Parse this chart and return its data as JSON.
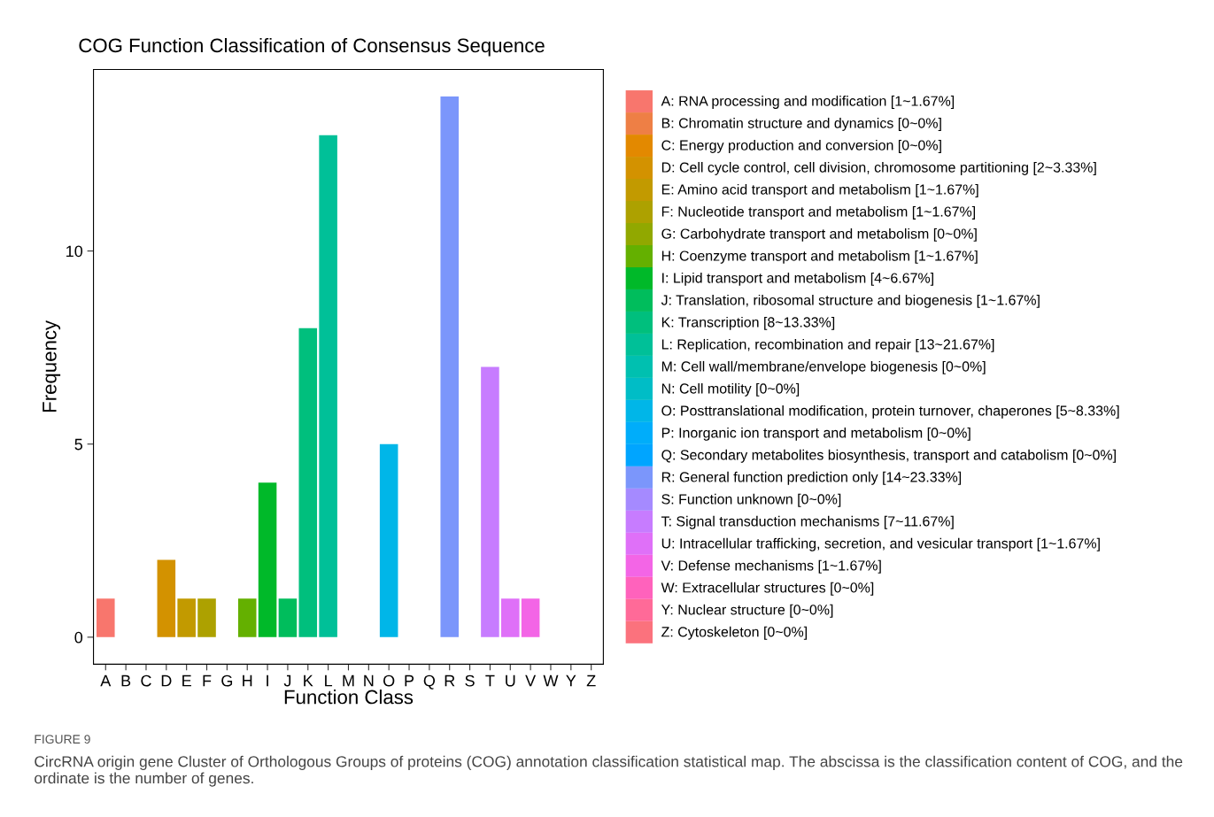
{
  "chart_data": {
    "type": "bar",
    "title": "COG Function Classification of Consensus Sequence",
    "xlabel": "Function Class",
    "ylabel": "Frequency",
    "categories": [
      "A",
      "B",
      "C",
      "D",
      "E",
      "F",
      "G",
      "H",
      "I",
      "J",
      "K",
      "L",
      "M",
      "N",
      "O",
      "P",
      "Q",
      "R",
      "S",
      "T",
      "U",
      "V",
      "W",
      "Y",
      "Z"
    ],
    "series": [
      {
        "name": "A: RNA processing and modification [1~1.67%]",
        "color": "#f8766d",
        "values": [
          1,
          null,
          null,
          null,
          null,
          null,
          null,
          null,
          null,
          null,
          null,
          null,
          null,
          null,
          null,
          null,
          null,
          null,
          null,
          null,
          null,
          null,
          null,
          null,
          null
        ]
      },
      {
        "name": "B: Chromatin structure and dynamics [0~0%]",
        "color": "#ee7f45",
        "values": [
          null,
          0,
          null,
          null,
          null,
          null,
          null,
          null,
          null,
          null,
          null,
          null,
          null,
          null,
          null,
          null,
          null,
          null,
          null,
          null,
          null,
          null,
          null,
          null,
          null
        ]
      },
      {
        "name": "C: Energy production and conversion [0~0%]",
        "color": "#e38900",
        "values": [
          null,
          null,
          0,
          null,
          null,
          null,
          null,
          null,
          null,
          null,
          null,
          null,
          null,
          null,
          null,
          null,
          null,
          null,
          null,
          null,
          null,
          null,
          null,
          null,
          null
        ]
      },
      {
        "name": "D: Cell cycle control, cell division, chromosome partitioning [2~3.33%]",
        "color": "#d39200",
        "values": [
          null,
          null,
          null,
          2,
          null,
          null,
          null,
          null,
          null,
          null,
          null,
          null,
          null,
          null,
          null,
          null,
          null,
          null,
          null,
          null,
          null,
          null,
          null,
          null,
          null
        ]
      },
      {
        "name": "E: Amino acid transport and metabolism [1~1.67%]",
        "color": "#c29a00",
        "values": [
          null,
          null,
          null,
          null,
          1,
          null,
          null,
          null,
          null,
          null,
          null,
          null,
          null,
          null,
          null,
          null,
          null,
          null,
          null,
          null,
          null,
          null,
          null,
          null,
          null
        ]
      },
      {
        "name": "F: Nucleotide transport and metabolism [1~1.67%]",
        "color": "#ada100",
        "values": [
          null,
          null,
          null,
          null,
          null,
          1,
          null,
          null,
          null,
          null,
          null,
          null,
          null,
          null,
          null,
          null,
          null,
          null,
          null,
          null,
          null,
          null,
          null,
          null,
          null
        ]
      },
      {
        "name": "G: Carbohydrate transport and metabolism [0~0%]",
        "color": "#91a800",
        "values": [
          null,
          null,
          null,
          null,
          null,
          null,
          0,
          null,
          null,
          null,
          null,
          null,
          null,
          null,
          null,
          null,
          null,
          null,
          null,
          null,
          null,
          null,
          null,
          null,
          null
        ]
      },
      {
        "name": "H: Coenzyme transport and metabolism [1~1.67%]",
        "color": "#64b000",
        "values": [
          null,
          null,
          null,
          null,
          null,
          null,
          null,
          1,
          null,
          null,
          null,
          null,
          null,
          null,
          null,
          null,
          null,
          null,
          null,
          null,
          null,
          null,
          null,
          null,
          null
        ]
      },
      {
        "name": "I: Lipid transport and metabolism [4~6.67%]",
        "color": "#00b929",
        "values": [
          null,
          null,
          null,
          null,
          null,
          null,
          null,
          null,
          4,
          null,
          null,
          null,
          null,
          null,
          null,
          null,
          null,
          null,
          null,
          null,
          null,
          null,
          null,
          null,
          null
        ]
      },
      {
        "name": "J: Translation, ribosomal structure and biogenesis [1~1.67%]",
        "color": "#00bd5c",
        "values": [
          null,
          null,
          null,
          null,
          null,
          null,
          null,
          null,
          null,
          1,
          null,
          null,
          null,
          null,
          null,
          null,
          null,
          null,
          null,
          null,
          null,
          null,
          null,
          null,
          null
        ]
      },
      {
        "name": "K: Transcription [8~13.33%]",
        "color": "#00bf7d",
        "values": [
          null,
          null,
          null,
          null,
          null,
          null,
          null,
          null,
          null,
          null,
          8,
          null,
          null,
          null,
          null,
          null,
          null,
          null,
          null,
          null,
          null,
          null,
          null,
          null,
          null
        ]
      },
      {
        "name": "L: Replication, recombination and repair [13~21.67%]",
        "color": "#00c098",
        "values": [
          null,
          null,
          null,
          null,
          null,
          null,
          null,
          null,
          null,
          null,
          null,
          13,
          null,
          null,
          null,
          null,
          null,
          null,
          null,
          null,
          null,
          null,
          null,
          null,
          null
        ]
      },
      {
        "name": "M: Cell wall/membrane/envelope biogenesis [0~0%]",
        "color": "#00c0b0",
        "values": [
          null,
          null,
          null,
          null,
          null,
          null,
          null,
          null,
          null,
          null,
          null,
          null,
          0,
          null,
          null,
          null,
          null,
          null,
          null,
          null,
          null,
          null,
          null,
          null,
          null
        ]
      },
      {
        "name": "N: Cell motility [0~0%]",
        "color": "#00bdc6",
        "values": [
          null,
          null,
          null,
          null,
          null,
          null,
          null,
          null,
          null,
          null,
          null,
          null,
          null,
          0,
          null,
          null,
          null,
          null,
          null,
          null,
          null,
          null,
          null,
          null,
          null
        ]
      },
      {
        "name": "O: Posttranslational modification, protein turnover, chaperones [5~8.33%]",
        "color": "#00b6e8",
        "values": [
          null,
          null,
          null,
          null,
          null,
          null,
          null,
          null,
          null,
          null,
          null,
          null,
          null,
          null,
          5,
          null,
          null,
          null,
          null,
          null,
          null,
          null,
          null,
          null,
          null
        ]
      },
      {
        "name": "P: Inorganic ion transport and metabolism [0~0%]",
        "color": "#00adfa",
        "values": [
          null,
          null,
          null,
          null,
          null,
          null,
          null,
          null,
          null,
          null,
          null,
          null,
          null,
          null,
          null,
          0,
          null,
          null,
          null,
          null,
          null,
          null,
          null,
          null,
          null
        ]
      },
      {
        "name": "Q: Secondary metabolites biosynthesis, transport and catabolism [0~0%]",
        "color": "#00a5ff",
        "values": [
          null,
          null,
          null,
          null,
          null,
          null,
          null,
          null,
          null,
          null,
          null,
          null,
          null,
          null,
          null,
          null,
          0,
          null,
          null,
          null,
          null,
          null,
          null,
          null,
          null
        ]
      },
      {
        "name": "R: General function prediction only [14~23.33%]",
        "color": "#7b96fb",
        "values": [
          null,
          null,
          null,
          null,
          null,
          null,
          null,
          null,
          null,
          null,
          null,
          null,
          null,
          null,
          null,
          null,
          null,
          14,
          null,
          null,
          null,
          null,
          null,
          null,
          null
        ]
      },
      {
        "name": "S: Function unknown [0~0%]",
        "color": "#a58aff",
        "values": [
          null,
          null,
          null,
          null,
          null,
          null,
          null,
          null,
          null,
          null,
          null,
          null,
          null,
          null,
          null,
          null,
          null,
          null,
          0,
          null,
          null,
          null,
          null,
          null,
          null
        ]
      },
      {
        "name": "T: Signal transduction mechanisms [7~11.67%]",
        "color": "#c77cff",
        "values": [
          null,
          null,
          null,
          null,
          null,
          null,
          null,
          null,
          null,
          null,
          null,
          null,
          null,
          null,
          null,
          null,
          null,
          null,
          null,
          7,
          null,
          null,
          null,
          null,
          null
        ]
      },
      {
        "name": "U: Intracellular trafficking, secretion, and vesicular transport [1~1.67%]",
        "color": "#df70f8",
        "values": [
          null,
          null,
          null,
          null,
          null,
          null,
          null,
          null,
          null,
          null,
          null,
          null,
          null,
          null,
          null,
          null,
          null,
          null,
          null,
          null,
          1,
          null,
          null,
          null,
          null
        ]
      },
      {
        "name": "V: Defense mechanisms [1~1.67%]",
        "color": "#f365e6",
        "values": [
          null,
          null,
          null,
          null,
          null,
          null,
          null,
          null,
          null,
          null,
          null,
          null,
          null,
          null,
          null,
          null,
          null,
          null,
          null,
          null,
          null,
          1,
          null,
          null,
          null
        ]
      },
      {
        "name": "W: Extracellular structures [0~0%]",
        "color": "#ff62bc",
        "values": [
          null,
          null,
          null,
          null,
          null,
          null,
          null,
          null,
          null,
          null,
          null,
          null,
          null,
          null,
          null,
          null,
          null,
          null,
          null,
          null,
          null,
          null,
          0,
          null,
          null
        ]
      },
      {
        "name": "Y: Nuclear structure [0~0%]",
        "color": "#ff6a98",
        "values": [
          null,
          null,
          null,
          null,
          null,
          null,
          null,
          null,
          null,
          null,
          null,
          null,
          null,
          null,
          null,
          null,
          null,
          null,
          null,
          null,
          null,
          null,
          null,
          0,
          null
        ]
      },
      {
        "name": "Z: Cytoskeleton [0~0%]",
        "color": "#fb727d",
        "values": [
          null,
          null,
          null,
          null,
          null,
          null,
          null,
          null,
          null,
          null,
          null,
          null,
          null,
          null,
          null,
          null,
          null,
          null,
          null,
          null,
          null,
          null,
          null,
          null,
          0
        ]
      }
    ],
    "ylim": [
      -0.7,
      14.7
    ],
    "yticks": [
      0,
      5,
      10
    ],
    "grid": false,
    "legend": "right",
    "annotations": [
      "FIGURE 9",
      "CircRNA origin gene Cluster of Orthologous Groups of proteins (COG) annotation classification statistical map. The abscissa is the classification content of COG, and the ordinate is the number of genes."
    ]
  }
}
